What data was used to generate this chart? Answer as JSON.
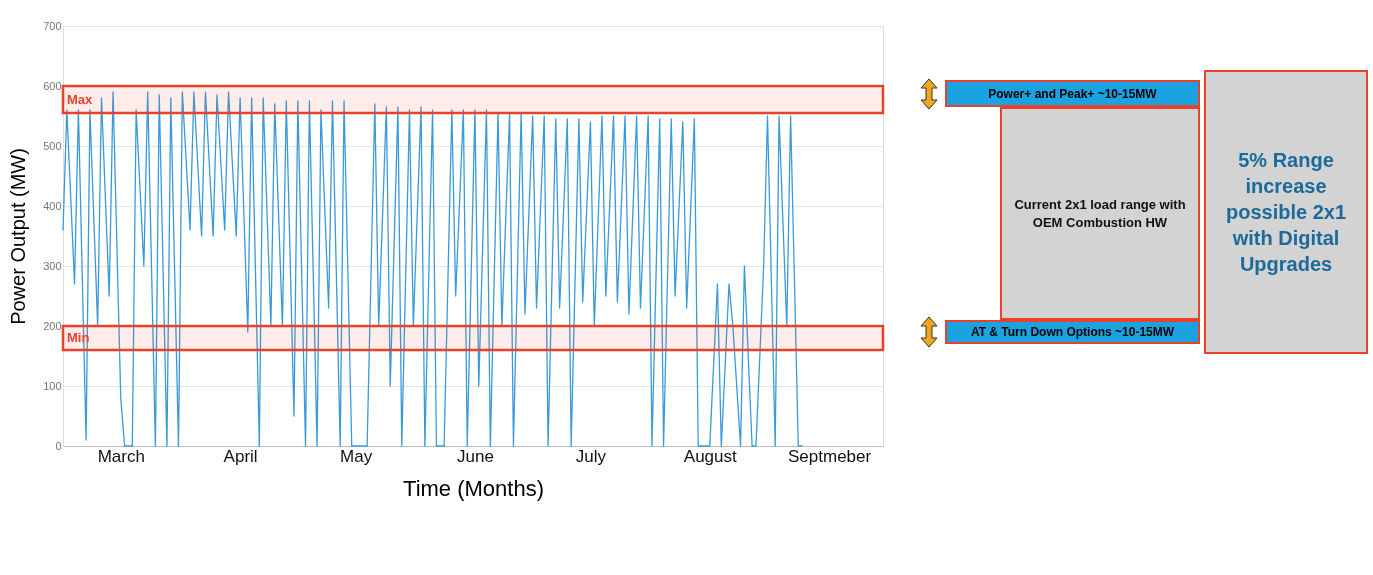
{
  "chart_data": {
    "type": "line",
    "xlabel": "Time (Months)",
    "ylabel": "Power Output (MW)",
    "xlim": [
      "--03-01",
      "--09-30"
    ],
    "ylim": [
      0,
      700
    ],
    "yticks": [
      0,
      100,
      200,
      300,
      400,
      500,
      600,
      700
    ],
    "xticks": [
      {
        "value": "--03-16",
        "label": "March"
      },
      {
        "value": "--04-16",
        "label": "April"
      },
      {
        "value": "--05-16",
        "label": "May"
      },
      {
        "value": "--06-16",
        "label": "June"
      },
      {
        "value": "--07-16",
        "label": "July"
      },
      {
        "value": "--08-16",
        "label": "August"
      },
      {
        "value": "--09-16",
        "label": "Septmeber"
      }
    ],
    "grid": "y",
    "series": [
      {
        "color": "#3a9ad9",
        "x": [
          "--03-01",
          "--03-02",
          "--03-04",
          "--03-05",
          "--03-07",
          "--03-08",
          "--03-10",
          "--03-11",
          "--03-13",
          "--03-14",
          "--03-16",
          "--03-17",
          "--03-19",
          "--03-20",
          "--03-22",
          "--03-23",
          "--03-25",
          "--03-26",
          "--03-28",
          "--03-29",
          "--03-31",
          "--04-01",
          "--04-03",
          "--04-04",
          "--04-06",
          "--04-07",
          "--04-09",
          "--04-10",
          "--04-12",
          "--04-13",
          "--04-15",
          "--04-16",
          "--04-18",
          "--04-19",
          "--04-21",
          "--04-22",
          "--04-24",
          "--04-25",
          "--04-27",
          "--04-28",
          "--04-30",
          "--05-01",
          "--05-03",
          "--05-04",
          "--05-06",
          "--05-07",
          "--05-09",
          "--05-10",
          "--05-12",
          "--05-13",
          "--05-15",
          "--05-17",
          "--05-19",
          "--05-21",
          "--05-22",
          "--05-24",
          "--05-25",
          "--05-27",
          "--05-28",
          "--05-30",
          "--05-31",
          "--06-02",
          "--06-03",
          "--06-05",
          "--06-06",
          "--06-08",
          "--06-10",
          "--06-11",
          "--06-13",
          "--06-14",
          "--06-16",
          "--06-17",
          "--06-19",
          "--06-20",
          "--06-22",
          "--06-23",
          "--06-25",
          "--06-26",
          "--06-28",
          "--06-29",
          "--07-01",
          "--07-02",
          "--07-04",
          "--07-05",
          "--07-07",
          "--07-08",
          "--07-10",
          "--07-11",
          "--07-13",
          "--07-14",
          "--07-16",
          "--07-17",
          "--07-19",
          "--07-20",
          "--07-22",
          "--07-23",
          "--07-25",
          "--07-26",
          "--07-28",
          "--07-29",
          "--07-31",
          "--08-01",
          "--08-03",
          "--08-04",
          "--08-06",
          "--08-07",
          "--08-09",
          "--08-10",
          "--08-12",
          "--08-13",
          "--08-15",
          "--08-16",
          "--08-18",
          "--08-19",
          "--08-21",
          "--08-22",
          "--08-24",
          "--08-25",
          "--08-27",
          "--08-28",
          "--08-30",
          "--08-31",
          "--09-02",
          "--09-03",
          "--09-05",
          "--09-06",
          "--09-08",
          "--09-09"
        ],
        "values": [
          360,
          560,
          270,
          560,
          10,
          560,
          200,
          580,
          250,
          590,
          80,
          0,
          0,
          560,
          300,
          590,
          0,
          585,
          0,
          580,
          0,
          590,
          360,
          590,
          350,
          590,
          350,
          585,
          360,
          590,
          350,
          580,
          190,
          580,
          0,
          580,
          200,
          570,
          200,
          575,
          50,
          575,
          0,
          575,
          0,
          560,
          230,
          575,
          0,
          575,
          0,
          0,
          0,
          570,
          200,
          565,
          100,
          565,
          0,
          560,
          200,
          565,
          0,
          560,
          0,
          0,
          560,
          250,
          560,
          0,
          560,
          100,
          560,
          0,
          555,
          200,
          555,
          0,
          555,
          220,
          550,
          230,
          550,
          0,
          545,
          230,
          545,
          0,
          545,
          240,
          540,
          200,
          550,
          250,
          550,
          240,
          550,
          220,
          550,
          230,
          550,
          0,
          545,
          0,
          545,
          250,
          540,
          230,
          545,
          0,
          0,
          0,
          270,
          0,
          270,
          200,
          0,
          300,
          0,
          0,
          300,
          550,
          0,
          550,
          200,
          550,
          0,
          0
        ]
      }
    ],
    "bands": [
      {
        "axis": "y",
        "from": 555,
        "to": 600,
        "label": "Max",
        "color": "#e8412c"
      },
      {
        "axis": "y",
        "from": 160,
        "to": 200,
        "label": "Min",
        "color": "#e8412c"
      }
    ],
    "annotations": [
      "Power+ and Peak+ ~10-15MW",
      "AT & Turn Down Options ~10-15MW",
      "Current 2x1 load range with OEM Combustion HW",
      "5% Range increase possible 2x1 with Digital Upgrades"
    ]
  }
}
